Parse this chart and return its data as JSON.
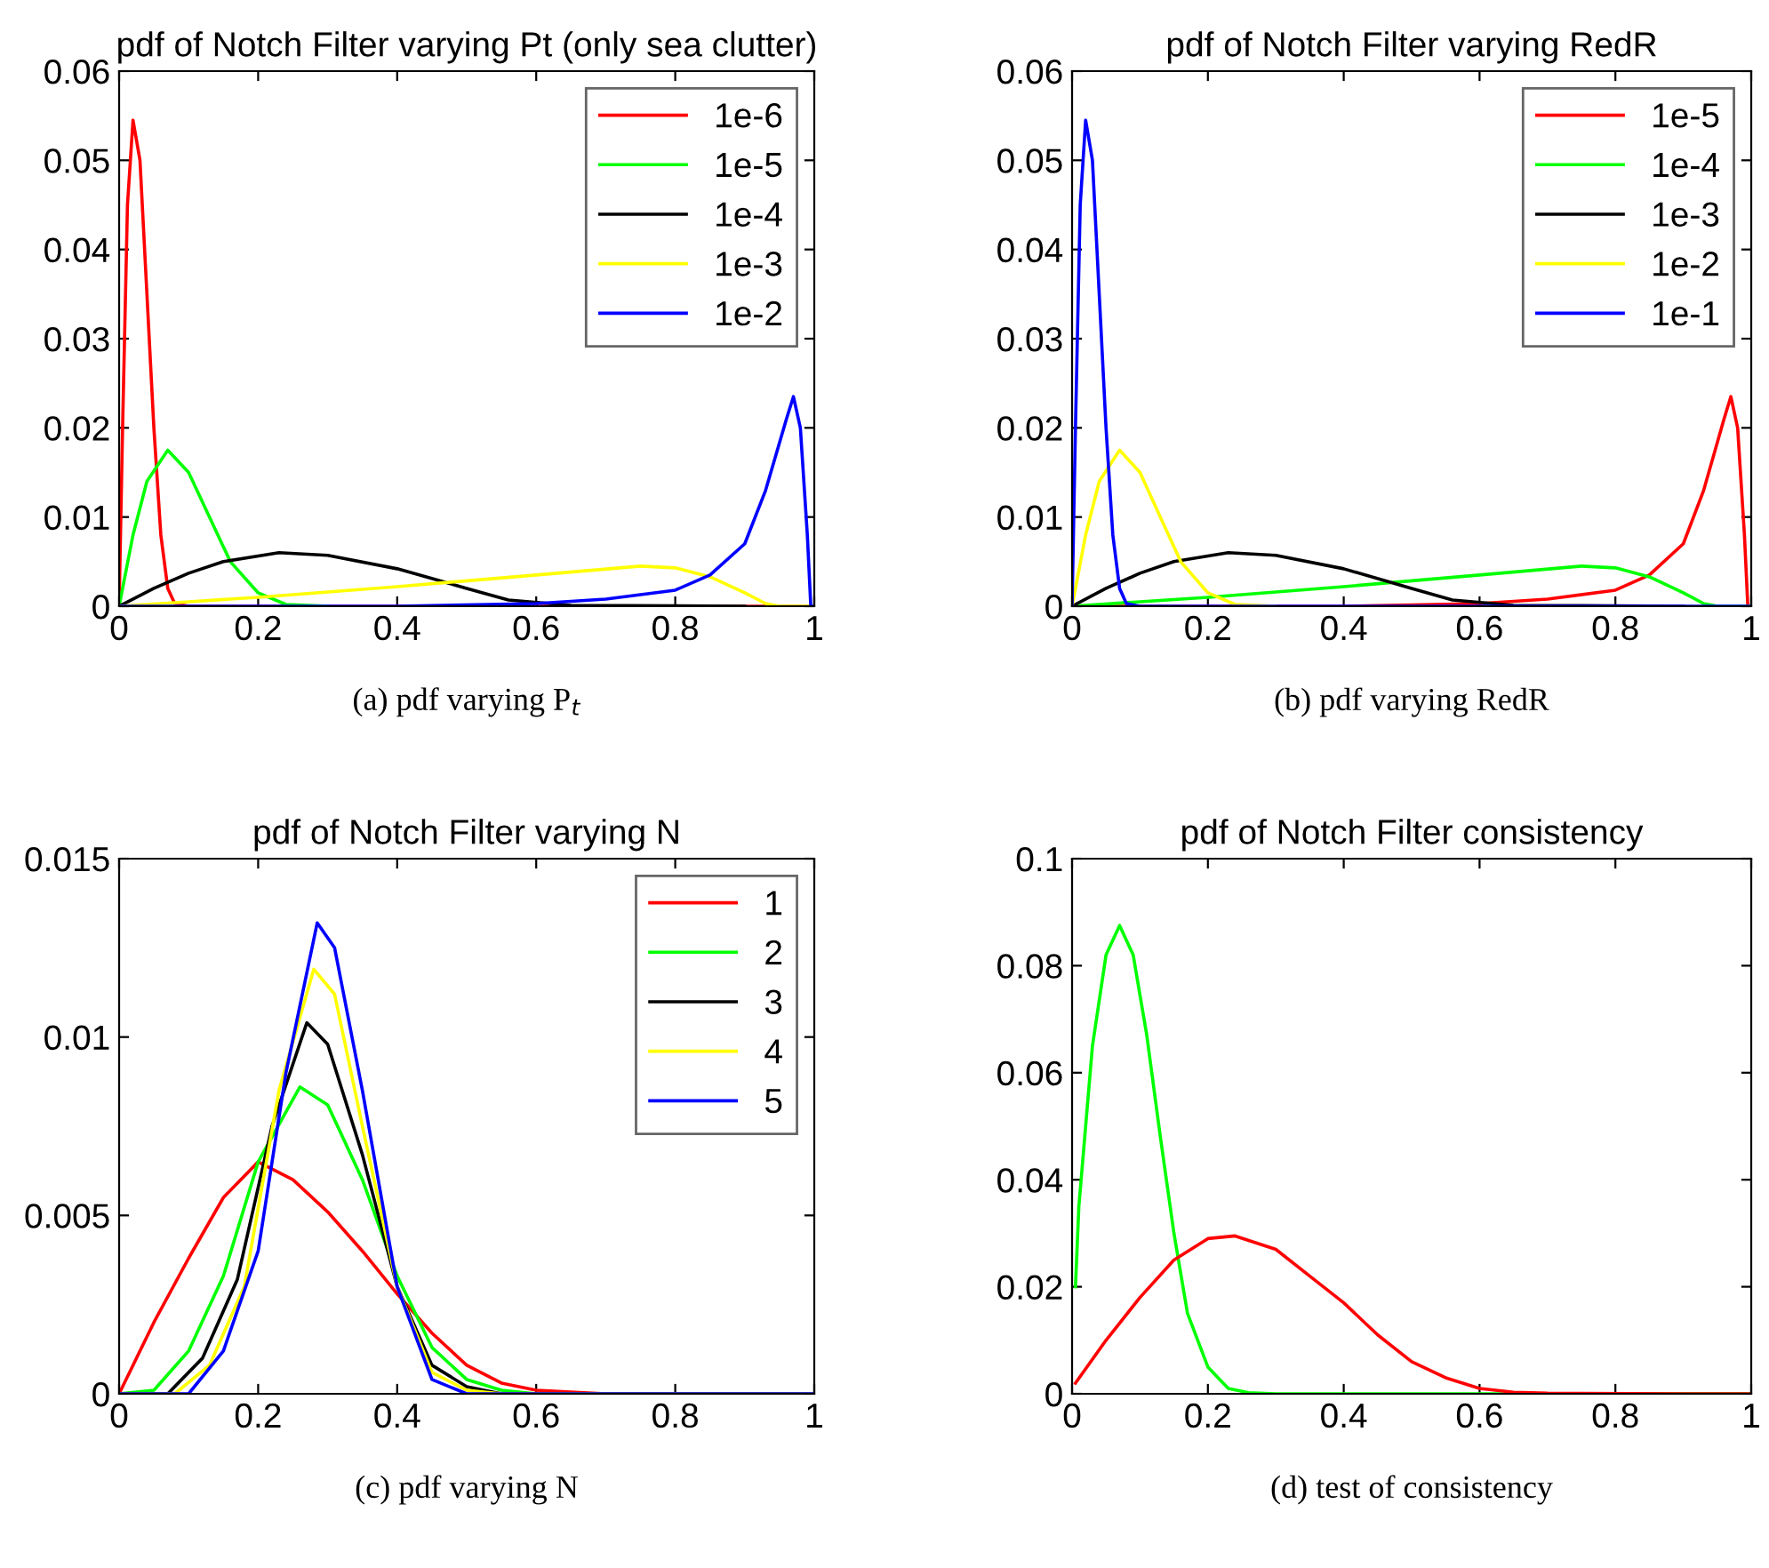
{
  "chart_data": [
    {
      "type": "line",
      "title": "pdf of Notch Filter varying Pt (only sea clutter)",
      "annotations": [
        "(a) pdf varying P$_{t}$"
      ],
      "xlim": [
        0,
        1
      ],
      "ylim": [
        0,
        0.06
      ],
      "xticks": [
        0,
        0.2,
        0.4,
        0.6,
        0.8,
        1
      ],
      "yticks": [
        0,
        0.01,
        0.02,
        0.03,
        0.04,
        0.05,
        0.06
      ],
      "legend": "top right",
      "grid": false,
      "series": [
        {
          "name": "1e-6",
          "color": "#ff0000",
          "x": [
            0,
            0.002,
            0.005,
            0.012,
            0.02,
            0.03,
            0.04,
            0.05,
            0.06,
            0.07,
            0.08,
            0.1,
            1
          ],
          "values": [
            0,
            0.008,
            0.02,
            0.045,
            0.0545,
            0.05,
            0.035,
            0.02,
            0.008,
            0.002,
            0.0003,
            0,
            0
          ]
        },
        {
          "name": "1e-5",
          "color": "#00ff00",
          "x": [
            0,
            0.02,
            0.04,
            0.07,
            0.1,
            0.13,
            0.16,
            0.2,
            0.24,
            0.3
          ],
          "values": [
            0,
            0.008,
            0.014,
            0.0175,
            0.015,
            0.01,
            0.005,
            0.0015,
            0.0002,
            0
          ]
        },
        {
          "name": "1e-4",
          "color": "#000000",
          "x": [
            0,
            0.05,
            0.1,
            0.15,
            0.23,
            0.3,
            0.4,
            0.5,
            0.56,
            0.65,
            0.9
          ],
          "values": [
            0,
            0.002,
            0.0037,
            0.005,
            0.006,
            0.0057,
            0.0042,
            0.002,
            0.0007,
            0.0001,
            0
          ]
        },
        {
          "name": "1e-3",
          "color": "#ffff00",
          "x": [
            0,
            0.1,
            0.2,
            0.4,
            0.6,
            0.75,
            0.8,
            0.85,
            0.9,
            0.93,
            0.95,
            1
          ],
          "values": [
            0,
            0.0005,
            0.001,
            0.0022,
            0.0035,
            0.0045,
            0.0043,
            0.0033,
            0.0015,
            0.0003,
            0,
            0
          ]
        },
        {
          "name": "1e-2",
          "color": "#0000ff",
          "x": [
            0,
            0.4,
            0.6,
            0.7,
            0.8,
            0.85,
            0.9,
            0.93,
            0.96,
            0.97,
            0.98,
            0.99,
            0.995,
            1
          ],
          "values": [
            0,
            0,
            0.0003,
            0.0008,
            0.0018,
            0.0035,
            0.007,
            0.013,
            0.021,
            0.0235,
            0.02,
            0.008,
            0,
            0
          ]
        }
      ]
    },
    {
      "type": "line",
      "title": "pdf of Notch Filter varying RedR",
      "annotations": [
        "(b) pdf varying RedR"
      ],
      "xlim": [
        0,
        1
      ],
      "ylim": [
        0,
        0.06
      ],
      "xticks": [
        0,
        0.2,
        0.4,
        0.6,
        0.8,
        1
      ],
      "yticks": [
        0,
        0.01,
        0.02,
        0.03,
        0.04,
        0.05,
        0.06
      ],
      "legend": "top right",
      "grid": false,
      "series": [
        {
          "name": "1e-5",
          "color": "#ff0000",
          "x": [
            0,
            0.4,
            0.6,
            0.7,
            0.8,
            0.85,
            0.9,
            0.93,
            0.96,
            0.97,
            0.98,
            0.99,
            0.995,
            1
          ],
          "values": [
            0,
            0,
            0.0003,
            0.0008,
            0.0018,
            0.0035,
            0.007,
            0.013,
            0.021,
            0.0235,
            0.02,
            0.008,
            0,
            0
          ]
        },
        {
          "name": "1e-4",
          "color": "#00ff00",
          "x": [
            0,
            0.1,
            0.2,
            0.4,
            0.6,
            0.75,
            0.8,
            0.85,
            0.9,
            0.93,
            0.95,
            1
          ],
          "values": [
            0,
            0.0005,
            0.001,
            0.0022,
            0.0035,
            0.0045,
            0.0043,
            0.0033,
            0.0015,
            0.0003,
            0,
            0
          ]
        },
        {
          "name": "1e-3",
          "color": "#000000",
          "x": [
            0,
            0.05,
            0.1,
            0.15,
            0.23,
            0.3,
            0.4,
            0.5,
            0.56,
            0.65,
            0.9
          ],
          "values": [
            0,
            0.002,
            0.0037,
            0.005,
            0.006,
            0.0057,
            0.0042,
            0.002,
            0.0007,
            0.0001,
            0
          ]
        },
        {
          "name": "1e-2",
          "color": "#ffff00",
          "x": [
            0,
            0.02,
            0.04,
            0.07,
            0.1,
            0.13,
            0.16,
            0.2,
            0.24,
            0.3
          ],
          "values": [
            0,
            0.008,
            0.014,
            0.0175,
            0.015,
            0.01,
            0.005,
            0.0015,
            0.0002,
            0
          ]
        },
        {
          "name": "1e-1",
          "color": "#0000ff",
          "x": [
            0,
            0.002,
            0.005,
            0.012,
            0.02,
            0.03,
            0.04,
            0.05,
            0.06,
            0.07,
            0.08,
            0.1,
            1
          ],
          "values": [
            0,
            0.008,
            0.02,
            0.045,
            0.0545,
            0.05,
            0.035,
            0.02,
            0.008,
            0.002,
            0.0003,
            0,
            0
          ]
        }
      ]
    },
    {
      "type": "line",
      "title": "pdf of Notch Filter varying N",
      "annotations": [
        "(c) pdf varying N"
      ],
      "xlim": [
        0,
        1
      ],
      "ylim": [
        0,
        0.015
      ],
      "xticks": [
        0,
        0.2,
        0.4,
        0.6,
        0.8,
        1
      ],
      "yticks": [
        0,
        0.005,
        0.01,
        0.015
      ],
      "legend": "top right",
      "grid": false,
      "series": [
        {
          "name": "1",
          "color": "#ff0000",
          "x": [
            0,
            0.05,
            0.1,
            0.15,
            0.2,
            0.25,
            0.3,
            0.35,
            0.4,
            0.45,
            0.5,
            0.55,
            0.6,
            0.7,
            1
          ],
          "values": [
            0,
            0.002,
            0.0038,
            0.0055,
            0.0065,
            0.006,
            0.0051,
            0.004,
            0.0028,
            0.0017,
            0.0008,
            0.0003,
            0.0001,
            0,
            0
          ]
        },
        {
          "name": "2",
          "color": "#00ff00",
          "x": [
            0,
            0.05,
            0.1,
            0.15,
            0.2,
            0.26,
            0.3,
            0.35,
            0.4,
            0.45,
            0.5,
            0.55,
            0.6,
            1
          ],
          "values": [
            0,
            0.0001,
            0.0012,
            0.0033,
            0.0065,
            0.0086,
            0.0081,
            0.006,
            0.0033,
            0.0013,
            0.0004,
            0.0001,
            0,
            0
          ]
        },
        {
          "name": "3",
          "color": "#000000",
          "x": [
            0,
            0.07,
            0.12,
            0.17,
            0.22,
            0.27,
            0.3,
            0.35,
            0.4,
            0.45,
            0.5,
            0.55,
            1
          ],
          "values": [
            0,
            0,
            0.001,
            0.0032,
            0.0075,
            0.0104,
            0.0098,
            0.0067,
            0.003,
            0.0008,
            0.0002,
            0,
            0
          ]
        },
        {
          "name": "4",
          "color": "#ffff00",
          "x": [
            0,
            0.08,
            0.13,
            0.18,
            0.23,
            0.28,
            0.31,
            0.35,
            0.4,
            0.45,
            0.5,
            0.55,
            1
          ],
          "values": [
            0,
            0,
            0.0008,
            0.003,
            0.0085,
            0.0119,
            0.0112,
            0.0075,
            0.003,
            0.0006,
            0.0001,
            0,
            0
          ]
        },
        {
          "name": "5",
          "color": "#0000ff",
          "x": [
            0,
            0.1,
            0.15,
            0.2,
            0.24,
            0.285,
            0.31,
            0.35,
            0.4,
            0.45,
            0.5,
            1
          ],
          "values": [
            0,
            0,
            0.0012,
            0.004,
            0.009,
            0.0132,
            0.0125,
            0.0085,
            0.003,
            0.0004,
            0,
            0
          ]
        }
      ]
    },
    {
      "type": "line",
      "title": "pdf of Notch Filter consistency",
      "annotations": [
        "(d) test of consistency"
      ],
      "xlim": [
        0,
        1
      ],
      "ylim": [
        0,
        0.1
      ],
      "xticks": [
        0,
        0.2,
        0.4,
        0.6,
        0.8,
        1
      ],
      "yticks": [
        0,
        0.02,
        0.04,
        0.06,
        0.08,
        0.1
      ],
      "grid": false,
      "series": [
        {
          "color": "#00ff00",
          "x": [
            0.005,
            0.01,
            0.03,
            0.05,
            0.07,
            0.09,
            0.11,
            0.13,
            0.15,
            0.17,
            0.2,
            0.23,
            0.26,
            0.3,
            1
          ],
          "values": [
            0.02,
            0.035,
            0.065,
            0.082,
            0.0875,
            0.082,
            0.067,
            0.048,
            0.03,
            0.015,
            0.005,
            0.001,
            0.0002,
            0,
            0
          ]
        },
        {
          "color": "#ff0000",
          "x": [
            0.005,
            0.05,
            0.1,
            0.15,
            0.2,
            0.24,
            0.3,
            0.35,
            0.4,
            0.45,
            0.5,
            0.55,
            0.6,
            0.65,
            0.7,
            0.9,
            1
          ],
          "values": [
            0.002,
            0.01,
            0.018,
            0.025,
            0.029,
            0.0295,
            0.027,
            0.022,
            0.017,
            0.011,
            0.006,
            0.003,
            0.001,
            0.0003,
            0.0001,
            0,
            0
          ]
        }
      ]
    }
  ]
}
